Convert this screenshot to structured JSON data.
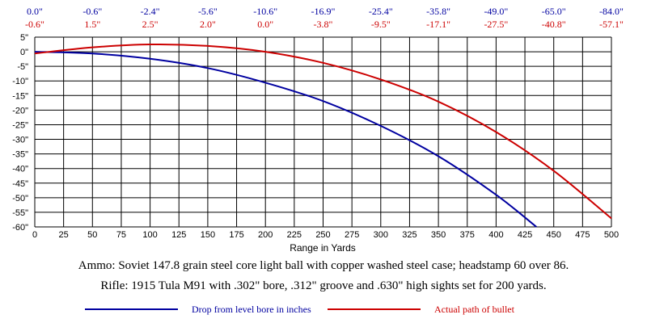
{
  "chart_data": {
    "type": "line",
    "xlabel": "Range in Yards",
    "ylabel": "",
    "xlim": [
      0,
      500
    ],
    "ylim": [
      -60,
      5
    ],
    "x_ticks": [
      0,
      25,
      50,
      75,
      100,
      125,
      150,
      175,
      200,
      225,
      250,
      275,
      300,
      325,
      350,
      375,
      400,
      425,
      450,
      475,
      500
    ],
    "y_ticks": [
      5,
      0,
      -5,
      -10,
      -15,
      -20,
      -25,
      -30,
      -35,
      -40,
      -45,
      -50,
      -55,
      -60
    ],
    "y_tick_labels": [
      "5\"",
      "0\"",
      "-5\"",
      "-10\"",
      "-15\"",
      "-20\"",
      "-25\"",
      "-30\"",
      "-35\"",
      "-40\"",
      "-45\"",
      "-50\"",
      "-55\"",
      "-60\""
    ],
    "grid": true,
    "top_rows": {
      "drop_labels": [
        "0.0\"",
        "-0.6\"",
        "-2.4\"",
        "-5.6\"",
        "-10.6\"",
        "-16.9\"",
        "-25.4\"",
        "-35.8\"",
        "-49.0\"",
        "-65.0\"",
        "-84.0\""
      ],
      "path_labels": [
        "-0.6\"",
        "1.5\"",
        "2.5\"",
        "2.0\"",
        "0.0\"",
        "-3.8\"",
        "-9.5\"",
        "-17.1\"",
        "-27.5\"",
        "-40.8\"",
        "-57.1\""
      ]
    },
    "series": [
      {
        "name": "Drop from level bore in inches",
        "color": "#0000a0",
        "x": [
          0,
          50,
          100,
          150,
          200,
          250,
          300,
          350,
          400,
          435
        ],
        "values": [
          0.0,
          -0.6,
          -2.4,
          -5.6,
          -10.6,
          -16.9,
          -25.4,
          -35.8,
          -49.0,
          -60.0
        ]
      },
      {
        "name": "Actual path of bullet",
        "color": "#cc0000",
        "x": [
          0,
          50,
          100,
          150,
          200,
          250,
          300,
          350,
          400,
          450,
          500
        ],
        "values": [
          -0.6,
          1.5,
          2.5,
          2.0,
          0.0,
          -3.8,
          -9.5,
          -17.1,
          -27.5,
          -40.8,
          -57.1
        ]
      }
    ]
  },
  "captions": {
    "ammo": "Ammo:  Soviet 147.8 grain steel core light ball with copper washed steel case; headstamp 60 over 86.",
    "rifle": "Rifle:  1915 Tula M91 with .302\" bore, .312\" groove and .630\" high sights set for 200 yards."
  },
  "colors": {
    "blue": "#0000a0",
    "red": "#cc0000",
    "grid": "#000000"
  }
}
